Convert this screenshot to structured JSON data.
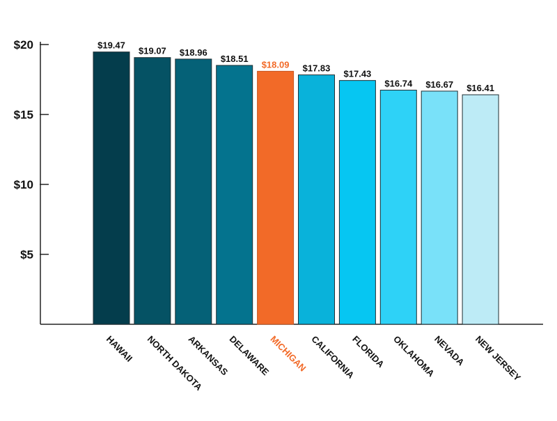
{
  "chart_data": {
    "type": "bar",
    "categories": [
      "HAWAII",
      "NORTH DAKOTA",
      "ARKANSAS",
      "DELAWARE",
      "MICHIGAN",
      "CALIFORNIA",
      "FLORIDA",
      "OKLAHOMA",
      "NEVADA",
      "NEW JERSEY"
    ],
    "values": [
      19.47,
      19.07,
      18.96,
      18.51,
      18.09,
      17.83,
      17.43,
      16.74,
      16.67,
      16.41
    ],
    "data_labels": [
      "$19.47",
      "$19.07",
      "$18.96",
      "$18.51",
      "$18.09",
      "$17.83",
      "$17.43",
      "$16.74",
      "$16.67",
      "$16.41"
    ],
    "bar_colors": [
      "#043d4c",
      "#055264",
      "#056177",
      "#04738e",
      "#f26a28",
      "#09b2da",
      "#06c6f2",
      "#2ed2f7",
      "#79e1f9",
      "#bdebf6"
    ],
    "label_colors": [
      "#111111",
      "#111111",
      "#111111",
      "#111111",
      "#f26a28",
      "#111111",
      "#111111",
      "#111111",
      "#111111",
      "#111111"
    ],
    "highlight_category": "MICHIGAN",
    "highlight_color": "#f26a28",
    "ylim": [
      0,
      20
    ],
    "y_ticks": [
      5,
      10,
      15,
      20
    ],
    "y_tick_labels": [
      "$5",
      "$10",
      "$15",
      "$20"
    ],
    "title": "",
    "xlabel": "",
    "ylabel": "",
    "grid": false,
    "legend": "none"
  }
}
